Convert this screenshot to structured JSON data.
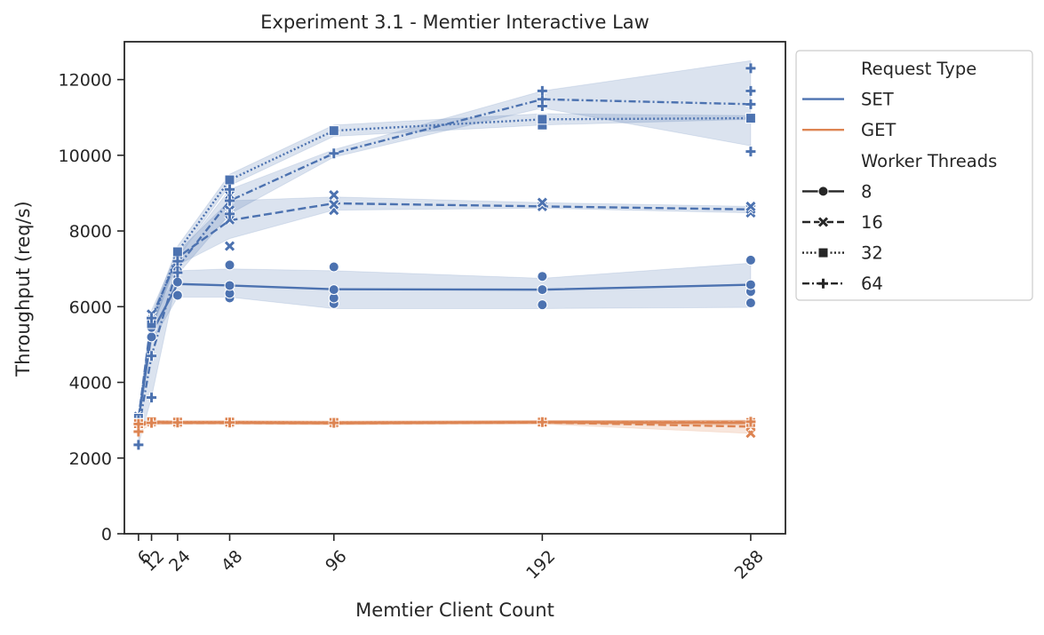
{
  "chart_data": {
    "type": "line",
    "title": "Experiment 3.1 - Memtier Interactive Law",
    "xlabel": "Memtier Client Count",
    "ylabel": "Throughput (req/s)",
    "x_ticks": [
      6,
      12,
      24,
      48,
      96,
      192,
      288
    ],
    "y_ticks": [
      0,
      2000,
      4000,
      6000,
      8000,
      10000,
      12000
    ],
    "xlim": [
      -0.5,
      304
    ],
    "ylim": [
      0,
      13000
    ],
    "grid": false,
    "legend": {
      "placement": "outside-right",
      "hue_title": "Request Type",
      "style_title": "Worker Threads",
      "hue_entries": [
        {
          "label": "SET",
          "color": "#4c72b0"
        },
        {
          "label": "GET",
          "color": "#dd8452"
        }
      ],
      "style_entries": [
        {
          "label": "8",
          "marker": "circle",
          "dash": "solid"
        },
        {
          "label": "16",
          "marker": "x",
          "dash": "dashed"
        },
        {
          "label": "32",
          "marker": "square",
          "dash": "dotted"
        },
        {
          "label": "64",
          "marker": "plus",
          "dash": "dashdot"
        }
      ]
    },
    "colors": {
      "SET": "#4c72b0",
      "GET": "#dd8452"
    },
    "x": [
      6,
      12,
      24,
      48,
      96,
      192,
      288
    ],
    "series": [
      {
        "request": "SET",
        "threads": "8",
        "values": [
          3000,
          5300,
          6600,
          6560,
          6460,
          6450,
          6580
        ],
        "ci_low": [
          2950,
          5050,
          6250,
          6250,
          5950,
          5950,
          5980
        ],
        "ci_high": [
          3100,
          5550,
          6950,
          7000,
          6950,
          6750,
          7150
        ],
        "points": [
          [
            6,
            2950
          ],
          [
            6,
            3050
          ],
          [
            12,
            5200
          ],
          [
            12,
            5450
          ],
          [
            24,
            6300
          ],
          [
            24,
            6650
          ],
          [
            24,
            6950
          ],
          [
            48,
            6230
          ],
          [
            48,
            6350
          ],
          [
            48,
            6560
          ],
          [
            48,
            7100
          ],
          [
            96,
            6080
          ],
          [
            96,
            6230
          ],
          [
            96,
            6450
          ],
          [
            96,
            7050
          ],
          [
            192,
            6050
          ],
          [
            192,
            6450
          ],
          [
            192,
            6800
          ],
          [
            288,
            6100
          ],
          [
            288,
            6400
          ],
          [
            288,
            6580
          ],
          [
            288,
            7230
          ]
        ]
      },
      {
        "request": "SET",
        "threads": "16",
        "values": [
          3050,
          5700,
          7300,
          8280,
          8730,
          8650,
          8570
        ],
        "ci_low": [
          2950,
          5500,
          7100,
          7800,
          8550,
          8600,
          8480
        ],
        "ci_high": [
          3150,
          5900,
          7450,
          8800,
          8900,
          8750,
          8650
        ],
        "points": [
          [
            6,
            3000
          ],
          [
            6,
            3100
          ],
          [
            12,
            5600
          ],
          [
            12,
            5800
          ],
          [
            24,
            7200
          ],
          [
            24,
            7400
          ],
          [
            48,
            7600
          ],
          [
            48,
            8300
          ],
          [
            48,
            8550
          ],
          [
            48,
            8950
          ],
          [
            96,
            8550
          ],
          [
            96,
            8700
          ],
          [
            96,
            8950
          ],
          [
            192,
            8650
          ],
          [
            192,
            8750
          ],
          [
            288,
            8480
          ],
          [
            288,
            8580
          ],
          [
            288,
            8650
          ]
        ]
      },
      {
        "request": "SET",
        "threads": "32",
        "values": [
          3050,
          5550,
          7450,
          9350,
          10650,
          10950,
          10980
        ],
        "ci_low": [
          2950,
          5350,
          7300,
          9200,
          10500,
          10800,
          10950
        ],
        "ci_high": [
          3150,
          5750,
          7600,
          9500,
          10800,
          11100,
          11050
        ],
        "points": [
          [
            6,
            3050
          ],
          [
            12,
            5550
          ],
          [
            24,
            7450
          ],
          [
            48,
            9350
          ],
          [
            96,
            10650
          ],
          [
            192,
            10800
          ],
          [
            192,
            10950
          ],
          [
            288,
            10980
          ]
        ]
      },
      {
        "request": "SET",
        "threads": "64",
        "values": [
          2750,
          4700,
          7050,
          8800,
          10050,
          11480,
          11350
        ],
        "ci_low": [
          2350,
          3600,
          6850,
          8450,
          9950,
          11250,
          10250
        ],
        "ci_high": [
          3050,
          5700,
          7300,
          9100,
          10150,
          11700,
          12500
        ],
        "points": [
          [
            6,
            2350
          ],
          [
            6,
            3000
          ],
          [
            12,
            3600
          ],
          [
            12,
            4700
          ],
          [
            12,
            5700
          ],
          [
            24,
            6900
          ],
          [
            24,
            7200
          ],
          [
            48,
            8450
          ],
          [
            48,
            8800
          ],
          [
            48,
            9100
          ],
          [
            96,
            10050
          ],
          [
            192,
            11300
          ],
          [
            192,
            11480
          ],
          [
            192,
            11700
          ],
          [
            288,
            10100
          ],
          [
            288,
            11350
          ],
          [
            288,
            11700
          ],
          [
            288,
            12300
          ]
        ]
      },
      {
        "request": "GET",
        "threads": "8",
        "values": [
          2920,
          2950,
          2940,
          2940,
          2930,
          2950,
          2930
        ],
        "ci_low": [
          2880,
          2900,
          2900,
          2900,
          2890,
          2910,
          2870
        ],
        "ci_high": [
          2960,
          2990,
          2980,
          2980,
          2970,
          2990,
          2990
        ],
        "points": [
          [
            6,
            2920
          ],
          [
            12,
            2950
          ],
          [
            24,
            2940
          ],
          [
            48,
            2940
          ],
          [
            96,
            2930
          ],
          [
            192,
            2950
          ],
          [
            288,
            2930
          ]
        ]
      },
      {
        "request": "GET",
        "threads": "16",
        "values": [
          2900,
          2940,
          2930,
          2930,
          2920,
          2940,
          2830
        ],
        "ci_low": [
          2850,
          2900,
          2890,
          2890,
          2880,
          2900,
          2650
        ],
        "ci_high": [
          2950,
          2980,
          2970,
          2970,
          2960,
          2980,
          3000
        ],
        "points": [
          [
            6,
            2900
          ],
          [
            12,
            2940
          ],
          [
            24,
            2930
          ],
          [
            48,
            2930
          ],
          [
            96,
            2920
          ],
          [
            192,
            2940
          ],
          [
            288,
            2660
          ],
          [
            288,
            2850
          ]
        ]
      },
      {
        "request": "GET",
        "threads": "32",
        "values": [
          2910,
          2960,
          2950,
          2950,
          2940,
          2950,
          2940
        ],
        "ci_low": [
          2870,
          2920,
          2910,
          2910,
          2900,
          2910,
          2900
        ],
        "ci_high": [
          2950,
          3000,
          2990,
          2990,
          2980,
          2990,
          2980
        ],
        "points": [
          [
            6,
            2910
          ],
          [
            12,
            2960
          ],
          [
            24,
            2950
          ],
          [
            48,
            2950
          ],
          [
            96,
            2940
          ],
          [
            192,
            2950
          ],
          [
            288,
            2940
          ]
        ]
      },
      {
        "request": "GET",
        "threads": "64",
        "values": [
          2850,
          2930,
          2940,
          2940,
          2930,
          2950,
          2950
        ],
        "ci_low": [
          2700,
          2880,
          2900,
          2900,
          2890,
          2910,
          2900
        ],
        "ci_high": [
          2950,
          2980,
          2980,
          2980,
          2970,
          2990,
          3000
        ],
        "points": [
          [
            6,
            2700
          ],
          [
            6,
            2900
          ],
          [
            12,
            2930
          ],
          [
            24,
            2940
          ],
          [
            48,
            2940
          ],
          [
            96,
            2930
          ],
          [
            192,
            2950
          ],
          [
            288,
            2960
          ]
        ]
      }
    ]
  }
}
